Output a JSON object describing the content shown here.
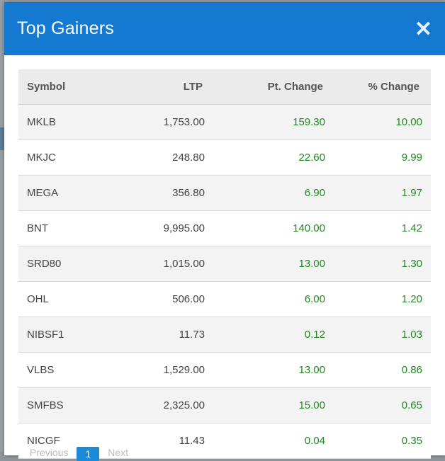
{
  "modal": {
    "title": "Top Gainers",
    "close_icon": "close-icon",
    "accent_color": "#1479d1",
    "gain_color": "#1e8a1e"
  },
  "table": {
    "columns": [
      "Symbol",
      "LTP",
      "Pt. Change",
      "% Change"
    ],
    "rows": [
      {
        "symbol": "MKLB",
        "ltp": "1,753.00",
        "pt_change": "159.30",
        "pct_change": "10.00"
      },
      {
        "symbol": "MKJC",
        "ltp": "248.80",
        "pt_change": "22.60",
        "pct_change": "9.99"
      },
      {
        "symbol": "MEGA",
        "ltp": "356.80",
        "pt_change": "6.90",
        "pct_change": "1.97"
      },
      {
        "symbol": "BNT",
        "ltp": "9,995.00",
        "pt_change": "140.00",
        "pct_change": "1.42"
      },
      {
        "symbol": "SRD80",
        "ltp": "1,015.00",
        "pt_change": "13.00",
        "pct_change": "1.30"
      },
      {
        "symbol": "OHL",
        "ltp": "506.00",
        "pt_change": "6.00",
        "pct_change": "1.20"
      },
      {
        "symbol": "NIBSF1",
        "ltp": "11.73",
        "pt_change": "0.12",
        "pct_change": "1.03"
      },
      {
        "symbol": "VLBS",
        "ltp": "1,529.00",
        "pt_change": "13.00",
        "pct_change": "0.86"
      },
      {
        "symbol": "SMFBS",
        "ltp": "2,325.00",
        "pt_change": "15.00",
        "pct_change": "0.65"
      },
      {
        "symbol": "NICGF",
        "ltp": "11.43",
        "pt_change": "0.04",
        "pct_change": "0.35"
      }
    ]
  },
  "pagination": {
    "prev_label": "Previous",
    "current_page": "1",
    "next_label": "Next"
  }
}
